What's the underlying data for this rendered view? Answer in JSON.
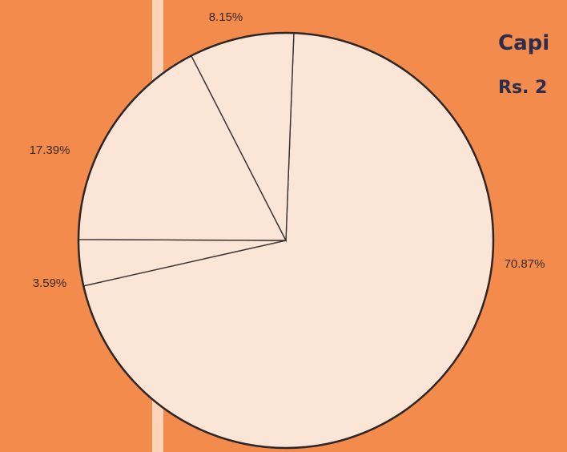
{
  "chart_data": {
    "type": "pie",
    "title": "Capi",
    "subtitle": "Rs. 2",
    "values": [
      70.87,
      3.59,
      17.39,
      8.15
    ],
    "value_labels": [
      "70.87%",
      "3.59%",
      "17.39%",
      "8.15%"
    ],
    "color": "#fbe5d6"
  }
}
